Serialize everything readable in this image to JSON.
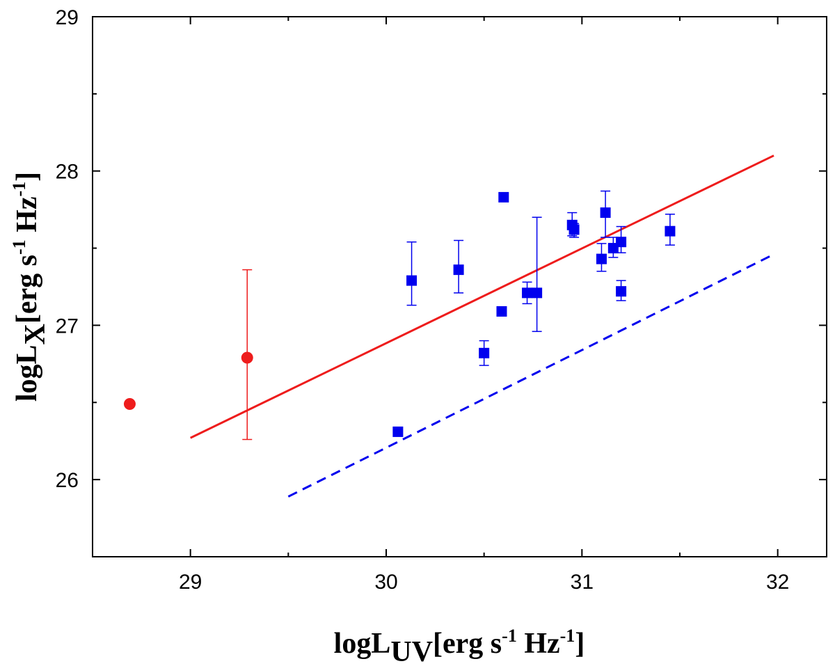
{
  "chart_data": {
    "type": "scatter",
    "title": "",
    "xlabel": "logL_UV[erg s^-1 Hz^-1]",
    "ylabel": "logL_X[erg s^-1 Hz^-1]",
    "axis_text": {
      "x_main": "logL",
      "x_sub": "UV",
      "y_main": "logL",
      "y_sub": "X",
      "units_open": "[erg s",
      "exp_neg1": "-1",
      "units_mid": " Hz",
      "units_close": "]"
    },
    "xlim": [
      28.5,
      32.25
    ],
    "ylim": [
      25.5,
      29.0
    ],
    "xticks": [
      29,
      30,
      31,
      32
    ],
    "yticks": [
      26,
      27,
      28,
      29
    ],
    "colors": {
      "red": "#ee1c1c",
      "blue": "#0000ee"
    },
    "series": [
      {
        "name": "blue-squares",
        "marker": "square",
        "color": "#0000ee",
        "points": [
          {
            "x": 30.06,
            "y": 26.31,
            "err_low": null,
            "err_high": null
          },
          {
            "x": 30.13,
            "y": 27.29,
            "err_low": 27.13,
            "err_high": 27.54
          },
          {
            "x": 30.37,
            "y": 27.36,
            "err_low": 27.21,
            "err_high": 27.55
          },
          {
            "x": 30.5,
            "y": 26.82,
            "err_low": 26.74,
            "err_high": 26.9
          },
          {
            "x": 30.59,
            "y": 27.09,
            "err_low": null,
            "err_high": null
          },
          {
            "x": 30.6,
            "y": 27.83,
            "err_low": null,
            "err_high": null
          },
          {
            "x": 30.72,
            "y": 27.21,
            "err_low": 27.14,
            "err_high": 27.28
          },
          {
            "x": 30.77,
            "y": 27.21,
            "err_low": 26.96,
            "err_high": 27.7
          },
          {
            "x": 30.95,
            "y": 27.65,
            "err_low": 27.58,
            "err_high": 27.73
          },
          {
            "x": 30.96,
            "y": 27.62,
            "err_low": 27.57,
            "err_high": 27.66
          },
          {
            "x": 31.1,
            "y": 27.43,
            "err_low": 27.35,
            "err_high": 27.53
          },
          {
            "x": 31.12,
            "y": 27.73,
            "err_low": 27.57,
            "err_high": 27.87
          },
          {
            "x": 31.16,
            "y": 27.5,
            "err_low": 27.44,
            "err_high": 27.57
          },
          {
            "x": 31.2,
            "y": 27.54,
            "err_low": 27.47,
            "err_high": 27.64
          },
          {
            "x": 31.2,
            "y": 27.22,
            "err_low": 27.16,
            "err_high": 27.29
          },
          {
            "x": 31.45,
            "y": 27.61,
            "err_low": 27.52,
            "err_high": 27.72
          }
        ]
      },
      {
        "name": "red-circles",
        "marker": "circle",
        "color": "#ee1c1c",
        "points": [
          {
            "x": 28.69,
            "y": 26.49,
            "err_low": null,
            "err_high": null
          },
          {
            "x": 29.29,
            "y": 26.79,
            "err_low": 26.26,
            "err_high": 27.36
          }
        ]
      }
    ],
    "lines": [
      {
        "name": "red-fit-line",
        "style": "solid",
        "color": "#ee1c1c",
        "x": [
          29.0,
          31.98
        ],
        "y": [
          26.27,
          28.1
        ]
      },
      {
        "name": "blue-dashed-line",
        "style": "dashed",
        "color": "#0000ee",
        "x": [
          29.5,
          31.98
        ],
        "y": [
          25.89,
          27.46
        ]
      }
    ]
  }
}
